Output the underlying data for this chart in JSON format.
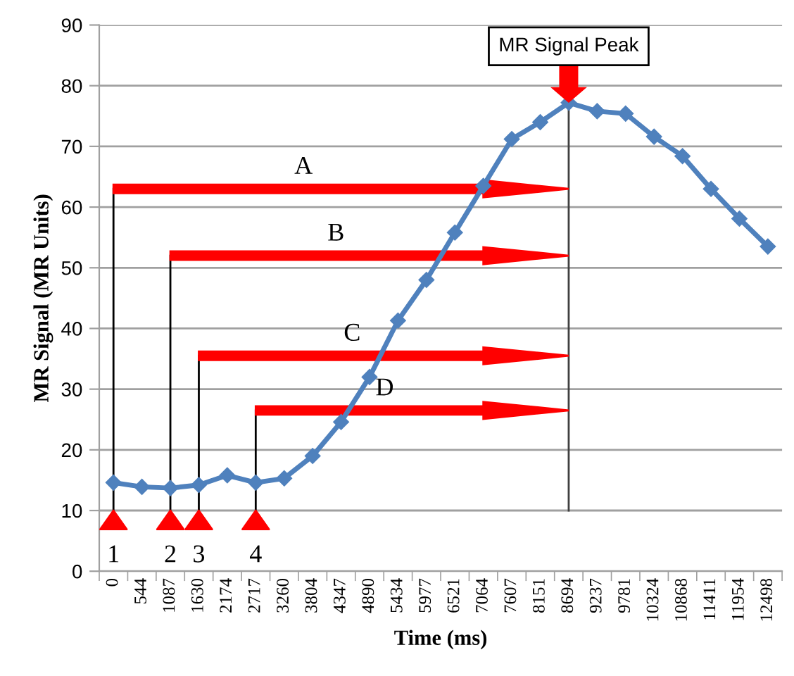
{
  "chart_data": {
    "type": "line",
    "xlabel": "Time (ms)",
    "ylabel": "MR Signal (MR Units)",
    "categories": [
      "0",
      "544",
      "1087",
      "1630",
      "2174",
      "2717",
      "3260",
      "3804",
      "4347",
      "4890",
      "5434",
      "5977",
      "6521",
      "7064",
      "7607",
      "8151",
      "8694",
      "9237",
      "9781",
      "10324",
      "10868",
      "11411",
      "11954",
      "12498"
    ],
    "series": [
      {
        "color": "#4f81bd",
        "values": [
          14.6,
          13.9,
          13.7,
          14.2,
          15.8,
          14.6,
          15.3,
          19.0,
          24.6,
          32.0,
          41.3,
          48.0,
          55.8,
          63.5,
          71.2,
          74.0,
          77.2,
          75.8,
          75.4,
          71.6,
          68.4,
          63.0,
          58.1,
          53.5
        ]
      }
    ],
    "ylim": [
      0,
      90
    ],
    "yticks": [
      0,
      10,
      20,
      30,
      40,
      50,
      60,
      70,
      80,
      90
    ],
    "grid": "y",
    "marker": "diamond",
    "line_style": "solid",
    "ref_lines": [
      {
        "axis": "x",
        "value": "8694",
        "label": "MR Signal Peak",
        "color": "#404040"
      }
    ],
    "annotations": [
      "A",
      "B",
      "C",
      "D",
      "1",
      "2",
      "3",
      "4"
    ]
  }
}
